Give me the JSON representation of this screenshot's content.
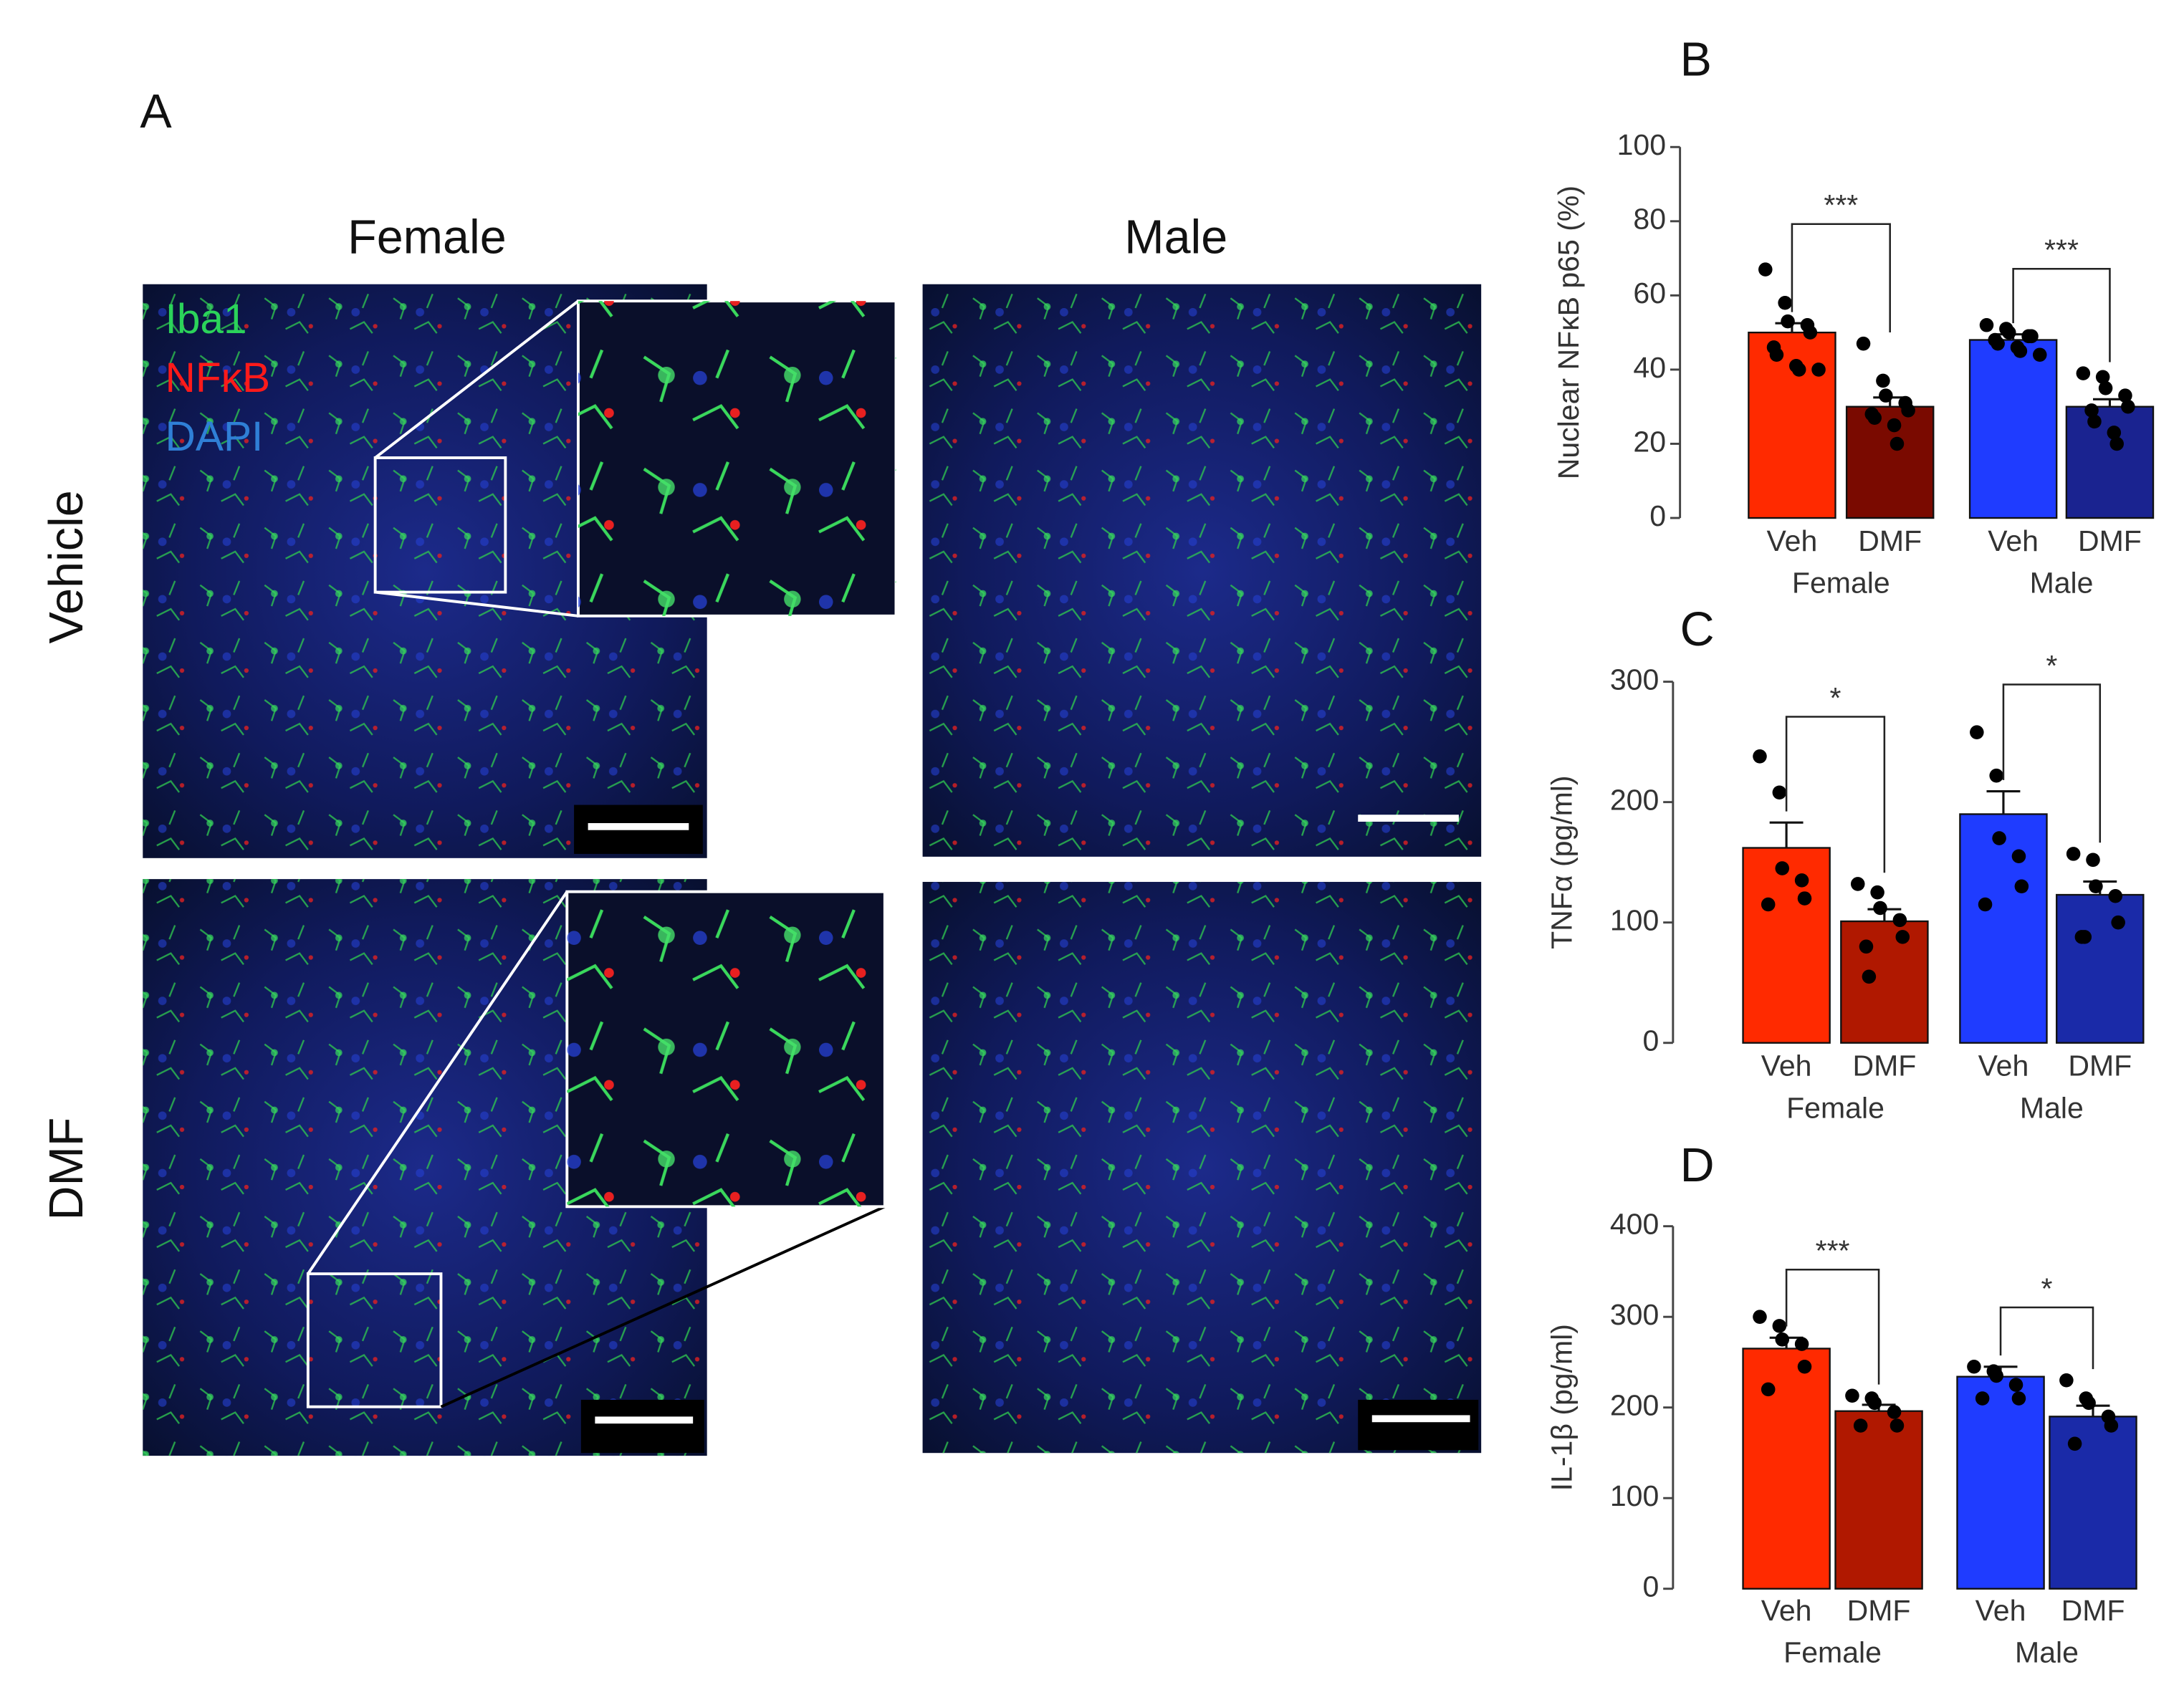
{
  "panel_a": {
    "label": "A",
    "columns": [
      "Female",
      "Male"
    ],
    "rows": [
      "Vehicle",
      "DMF"
    ],
    "stains": [
      "Iba1",
      "NFκB",
      "DAPI"
    ]
  },
  "chart_data": [
    {
      "type": "bar",
      "panel_label": "B",
      "ylabel": "Nuclear NFκB p65 (%)",
      "categories": [
        "Veh",
        "DMF",
        "Veh",
        "DMF"
      ],
      "groups": [
        "Female",
        "Male"
      ],
      "values": [
        50,
        30,
        48,
        30
      ],
      "errors": [
        2.5,
        2.5,
        1.5,
        2
      ],
      "colors": [
        "#ff2a00",
        "#7a0a00",
        "#1f3cff",
        "#1a2390"
      ],
      "points": [
        [
          67,
          58,
          53,
          52,
          50,
          46,
          44,
          41,
          40,
          40
        ],
        [
          47,
          37,
          33,
          31,
          29,
          28,
          27,
          25,
          20
        ],
        [
          52,
          51,
          50,
          49,
          49,
          48,
          47,
          46,
          45,
          44
        ],
        [
          39,
          38,
          35,
          33,
          30,
          29,
          26,
          23,
          20
        ]
      ],
      "ylim": [
        0,
        100
      ],
      "yticks": [
        0,
        20,
        40,
        60,
        80,
        100
      ],
      "significance": [
        "***",
        "***"
      ]
    },
    {
      "type": "bar",
      "panel_label": "C",
      "ylabel": "TNFα (pg/ml)",
      "categories": [
        "Veh",
        "DMF",
        "Veh",
        "DMF"
      ],
      "groups": [
        "Female",
        "Male"
      ],
      "values": [
        162,
        101,
        190,
        123
      ],
      "errors": [
        21,
        10,
        19,
        11
      ],
      "colors": [
        "#ff2a00",
        "#b01800",
        "#1f3cff",
        "#1a2aa8"
      ],
      "points": [
        [
          238,
          208,
          145,
          135,
          120,
          115
        ],
        [
          132,
          125,
          112,
          102,
          88,
          80,
          55
        ],
        [
          258,
          222,
          170,
          155,
          130,
          115
        ],
        [
          157,
          152,
          130,
          122,
          100,
          88,
          88
        ]
      ],
      "ylim": [
        0,
        300
      ],
      "yticks": [
        0,
        100,
        200,
        300
      ],
      "significance": [
        "*",
        "*"
      ]
    },
    {
      "type": "bar",
      "panel_label": "D",
      "ylabel": "IL-1β (pg/ml)",
      "categories": [
        "Veh",
        "DMF",
        "Veh",
        "DMF"
      ],
      "groups": [
        "Female",
        "Male"
      ],
      "values": [
        265,
        196,
        234,
        190
      ],
      "errors": [
        12,
        7,
        11,
        12
      ],
      "colors": [
        "#ff2a00",
        "#b01800",
        "#1f3cff",
        "#1a2aa8"
      ],
      "points": [
        [
          300,
          290,
          275,
          270,
          245,
          220
        ],
        [
          213,
          210,
          205,
          195,
          180,
          180
        ],
        [
          245,
          240,
          235,
          225,
          210,
          210
        ],
        [
          230,
          210,
          205,
          190,
          180,
          160
        ]
      ],
      "ylim": [
        0,
        400
      ],
      "yticks": [
        0,
        100,
        200,
        300,
        400
      ],
      "significance": [
        "***",
        "*"
      ]
    }
  ]
}
